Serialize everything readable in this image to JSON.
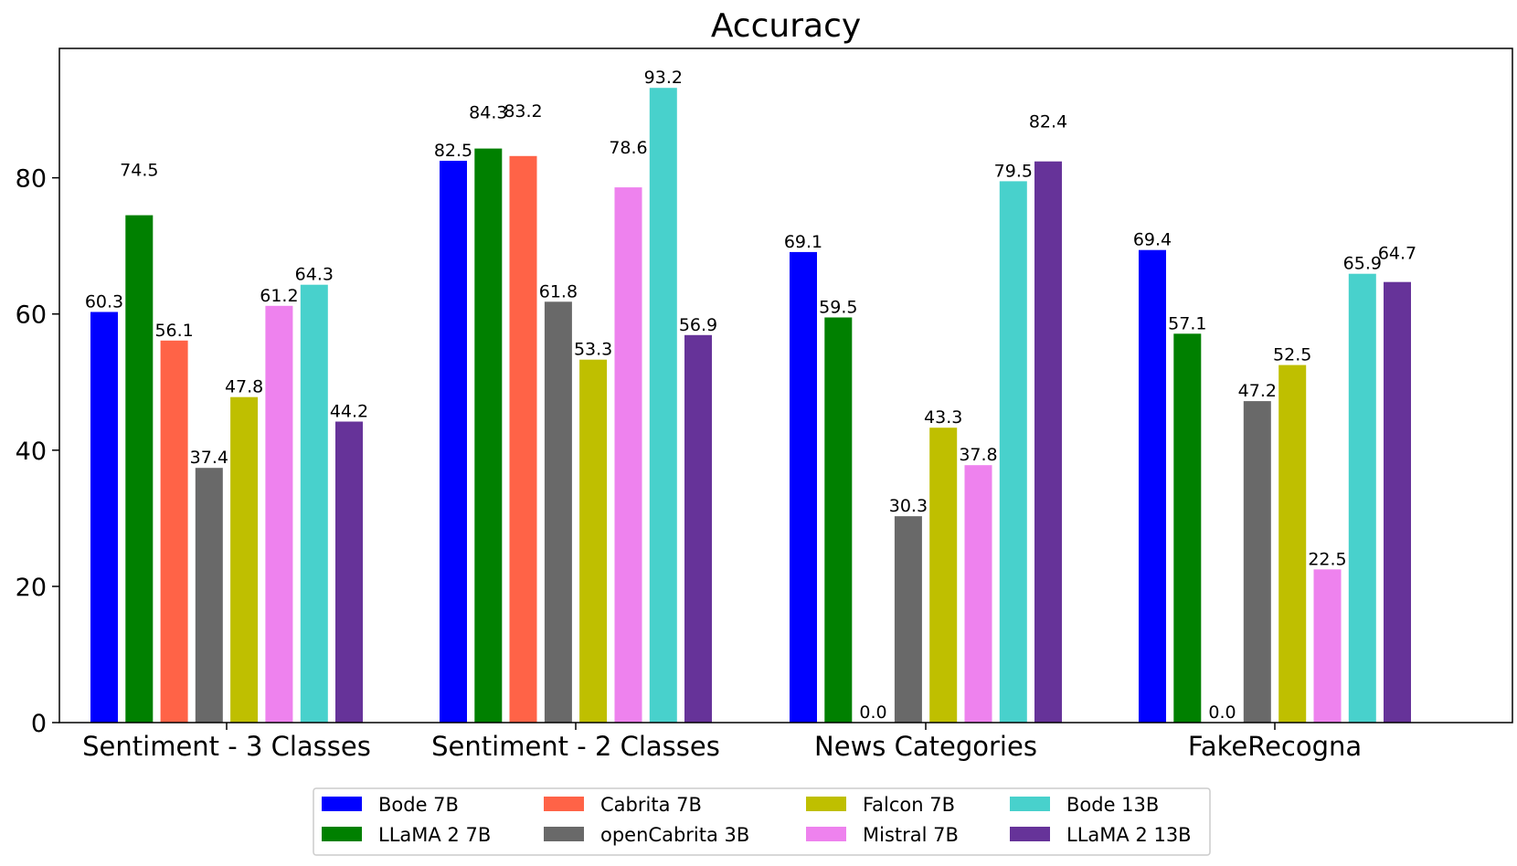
{
  "chart_data": {
    "type": "bar",
    "title": "Accuracy",
    "xlabel": "",
    "ylabel": "",
    "ylim": [
      0,
      99
    ],
    "yticks": [
      0,
      20,
      40,
      60,
      80
    ],
    "grid": false,
    "legend_position": "bottom-center",
    "categories": [
      "Sentiment - 3 Classes",
      "Sentiment - 2 Classes",
      "News Categories",
      "FakeRecogna"
    ],
    "series": [
      {
        "name": "Bode 7B",
        "color": "#0000ff",
        "values": [
          60.3,
          82.5,
          69.1,
          69.4
        ]
      },
      {
        "name": "LLaMA 2 7B",
        "color": "#008000",
        "values": [
          74.5,
          84.3,
          59.5,
          57.1
        ]
      },
      {
        "name": "Cabrita 7B",
        "color": "#ff6347",
        "values": [
          56.1,
          83.2,
          0.0,
          0.0
        ]
      },
      {
        "name": "openCabrita 3B",
        "color": "#696969",
        "values": [
          37.4,
          61.8,
          30.3,
          47.2
        ]
      },
      {
        "name": "Falcon 7B",
        "color": "#bfbf00",
        "values": [
          47.8,
          53.3,
          43.3,
          52.5
        ]
      },
      {
        "name": "Mistral 7B",
        "color": "#ee82ee",
        "values": [
          61.2,
          78.6,
          37.8,
          22.5
        ]
      },
      {
        "name": "Bode 13B",
        "color": "#48d1cc",
        "values": [
          64.3,
          93.2,
          79.5,
          65.9
        ]
      },
      {
        "name": "LLaMA 2 13B",
        "color": "#663399",
        "values": [
          44.2,
          56.9,
          82.4,
          64.7
        ]
      }
    ],
    "value_labels": [
      [
        "60.3",
        "82.5",
        "69.1",
        "69.4"
      ],
      [
        "74.5",
        "84.3",
        "59.5",
        "57.1"
      ],
      [
        "56.1",
        "83.2",
        "0.0",
        "0.0"
      ],
      [
        "37.4",
        "61.8",
        "30.3",
        "47.2"
      ],
      [
        "47.8",
        "53.3",
        "43.3",
        "52.5"
      ],
      [
        "61.2",
        "78.6",
        "37.8",
        "22.5"
      ],
      [
        "64.3",
        "93.2",
        "79.5",
        "65.9"
      ],
      [
        "44.2",
        "56.9",
        "82.4",
        "64.7"
      ]
    ]
  }
}
